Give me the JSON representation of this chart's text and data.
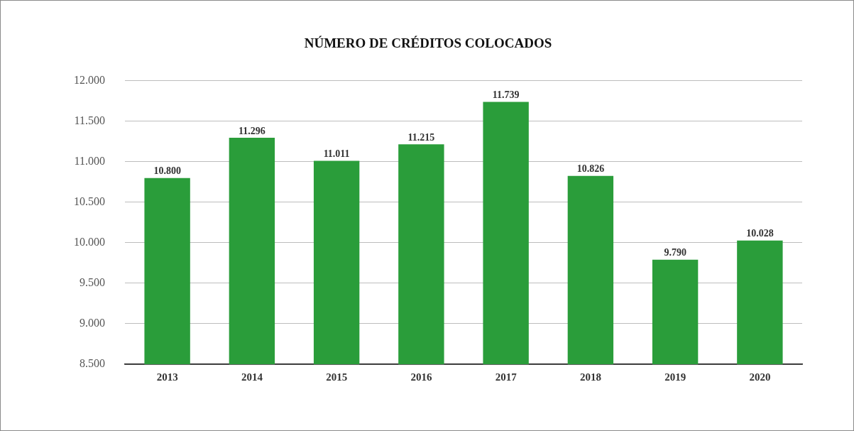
{
  "chart_data": {
    "type": "bar",
    "title": "NÚMERO DE CRÉDITOS COLOCADOS",
    "categories": [
      "2013",
      "2014",
      "2015",
      "2016",
      "2017",
      "2018",
      "2019",
      "2020"
    ],
    "values": [
      10800,
      11296,
      11011,
      11215,
      11739,
      10826,
      9790,
      10028
    ],
    "value_labels": [
      "10.800",
      "11.296",
      "11.011",
      "11.215",
      "11.739",
      "10.826",
      "9.790",
      "10.028"
    ],
    "color": "#2a9d3a",
    "ylim": [
      8500,
      12000
    ],
    "yticks": [
      {
        "value": 8500,
        "label": "8.500"
      },
      {
        "value": 9000,
        "label": "9.000"
      },
      {
        "value": 9500,
        "label": "9.500"
      },
      {
        "value": 10000,
        "label": "10.000"
      },
      {
        "value": 10500,
        "label": "10.500"
      },
      {
        "value": 11000,
        "label": "11.000"
      },
      {
        "value": 11500,
        "label": "11.500"
      },
      {
        "value": 12000,
        "label": "12.000"
      }
    ],
    "grid": "y",
    "legend": false
  }
}
